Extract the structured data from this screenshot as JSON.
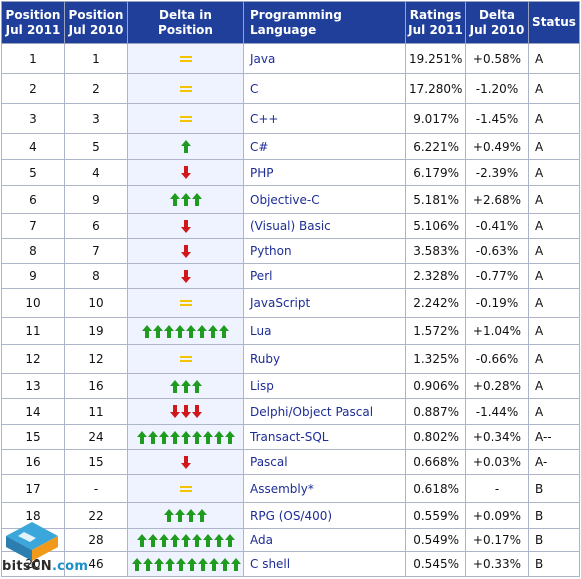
{
  "headers": {
    "pos_2011": [
      "Position",
      "Jul 2011"
    ],
    "pos_2010": [
      "Position",
      "Jul 2010"
    ],
    "delta_pos": "Delta in Position",
    "language": "Programming Language",
    "ratings": [
      "Ratings",
      "Jul 2011"
    ],
    "delta_ratings": [
      "Delta",
      "Jul 2010"
    ],
    "status": "Status"
  },
  "rows": [
    {
      "pos2011": "1",
      "pos2010": "1",
      "arrow": "equal",
      "count": 1,
      "language": "Java",
      "rating": "19.251%",
      "delta": "+0.58%",
      "status": "A"
    },
    {
      "pos2011": "2",
      "pos2010": "2",
      "arrow": "equal",
      "count": 1,
      "language": "C",
      "rating": "17.280%",
      "delta": "-1.20%",
      "status": "A"
    },
    {
      "pos2011": "3",
      "pos2010": "3",
      "arrow": "equal",
      "count": 1,
      "language": "C++",
      "rating": "9.017%",
      "delta": "-1.45%",
      "status": "A"
    },
    {
      "pos2011": "4",
      "pos2010": "5",
      "arrow": "up",
      "count": 1,
      "language": "C#",
      "rating": "6.221%",
      "delta": "+0.49%",
      "status": "A"
    },
    {
      "pos2011": "5",
      "pos2010": "4",
      "arrow": "down",
      "count": 1,
      "language": "PHP",
      "rating": "6.179%",
      "delta": "-2.39%",
      "status": "A"
    },
    {
      "pos2011": "6",
      "pos2010": "9",
      "arrow": "up",
      "count": 3,
      "language": "Objective-C",
      "rating": "5.181%",
      "delta": "+2.68%",
      "status": "A"
    },
    {
      "pos2011": "7",
      "pos2010": "6",
      "arrow": "down",
      "count": 1,
      "language": "(Visual) Basic",
      "rating": "5.106%",
      "delta": "-0.41%",
      "status": "A"
    },
    {
      "pos2011": "8",
      "pos2010": "7",
      "arrow": "down",
      "count": 1,
      "language": "Python",
      "rating": "3.583%",
      "delta": "-0.63%",
      "status": "A"
    },
    {
      "pos2011": "9",
      "pos2010": "8",
      "arrow": "down",
      "count": 1,
      "language": "Perl",
      "rating": "2.328%",
      "delta": "-0.77%",
      "status": "A"
    },
    {
      "pos2011": "10",
      "pos2010": "10",
      "arrow": "equal",
      "count": 1,
      "language": "JavaScript",
      "rating": "2.242%",
      "delta": "-0.19%",
      "status": "A"
    },
    {
      "pos2011": "11",
      "pos2010": "19",
      "arrow": "up",
      "count": 8,
      "language": "Lua",
      "rating": "1.572%",
      "delta": "+1.04%",
      "status": "A"
    },
    {
      "pos2011": "12",
      "pos2010": "12",
      "arrow": "equal",
      "count": 1,
      "language": "Ruby",
      "rating": "1.325%",
      "delta": "-0.66%",
      "status": "A"
    },
    {
      "pos2011": "13",
      "pos2010": "16",
      "arrow": "up",
      "count": 3,
      "language": "Lisp",
      "rating": "0.906%",
      "delta": "+0.28%",
      "status": "A"
    },
    {
      "pos2011": "14",
      "pos2010": "11",
      "arrow": "down",
      "count": 3,
      "language": "Delphi/Object Pascal",
      "rating": "0.887%",
      "delta": "-1.44%",
      "status": "A"
    },
    {
      "pos2011": "15",
      "pos2010": "24",
      "arrow": "up",
      "count": 9,
      "language": "Transact-SQL",
      "rating": "0.802%",
      "delta": "+0.34%",
      "status": "A--"
    },
    {
      "pos2011": "16",
      "pos2010": "15",
      "arrow": "down",
      "count": 1,
      "language": "Pascal",
      "rating": "0.668%",
      "delta": "+0.03%",
      "status": "A-"
    },
    {
      "pos2011": "17",
      "pos2010": "-",
      "arrow": "equal",
      "count": 1,
      "language": "Assembly*",
      "rating": "0.618%",
      "delta": "-",
      "status": "B"
    },
    {
      "pos2011": "18",
      "pos2010": "22",
      "arrow": "up",
      "count": 4,
      "language": "RPG (OS/400)",
      "rating": "0.559%",
      "delta": "+0.09%",
      "status": "B"
    },
    {
      "pos2011": "19",
      "pos2010": "28",
      "arrow": "up",
      "count": 9,
      "language": "Ada",
      "rating": "0.549%",
      "delta": "+0.17%",
      "status": "B"
    },
    {
      "pos2011": "20",
      "pos2010": "46",
      "arrow": "up",
      "count": 10,
      "language": "C shell",
      "rating": "0.545%",
      "delta": "+0.33%",
      "status": "B"
    }
  ],
  "watermark": {
    "brand": "bitsCN",
    "suffix": ".com"
  },
  "colors": {
    "header_bg": "#1f3f9a",
    "up": "#1f9c1f",
    "down": "#d01818",
    "equal": "#f5c400",
    "delta_cell_bg": "#eff3ff",
    "language_text": "#1d2d96"
  }
}
